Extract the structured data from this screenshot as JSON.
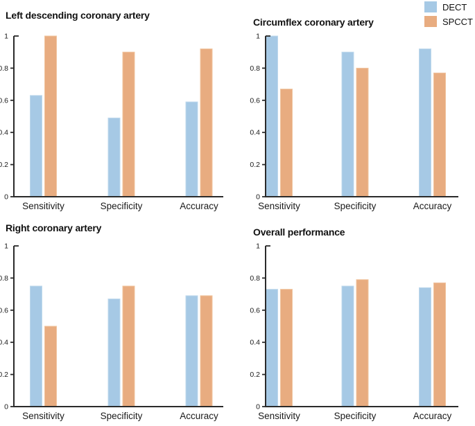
{
  "legend": {
    "position": "top-right",
    "items": [
      {
        "label": "DECT",
        "color": "#A6C9E5",
        "edge": "#BFD9EC"
      },
      {
        "label": "SPCCT",
        "color": "#E8AC80",
        "edge": "#F0C49E"
      }
    ]
  },
  "axis_style": {
    "spine_color": "#2a2a2a",
    "tick_label_color": "#1a1a1a",
    "category_label_color": "#1a1a1a"
  },
  "chart_data": [
    {
      "type": "bar",
      "title": "Left descending coronary artery",
      "categories": [
        "Sensitivity",
        "Specificity",
        "Accuracy"
      ],
      "series": [
        {
          "name": "DECT",
          "values": [
            0.63,
            0.49,
            0.59
          ]
        },
        {
          "name": "SPCCT",
          "values": [
            1.0,
            0.9,
            0.92
          ]
        }
      ],
      "ylim": [
        0,
        1
      ],
      "yticks": [
        0,
        0.2,
        0.4,
        0.6,
        0.8,
        1
      ],
      "ytick_labels": [
        "0",
        "0.2",
        "0.4",
        "0.6",
        "0.8",
        "1"
      ],
      "grid": false,
      "legend_position": "figure-top-right"
    },
    {
      "type": "bar",
      "title": "Circumflex coronary artery",
      "categories": [
        "Sensitivity",
        "Specificity",
        "Accuracy"
      ],
      "series": [
        {
          "name": "DECT",
          "values": [
            1.0,
            0.9,
            0.92
          ]
        },
        {
          "name": "SPCCT",
          "values": [
            0.67,
            0.8,
            0.77
          ]
        }
      ],
      "ylim": [
        0,
        1
      ],
      "yticks": [
        0,
        0.2,
        0.4,
        0.6,
        0.8,
        1
      ],
      "ytick_labels": [
        "0",
        "0.2",
        "0.4",
        "0.6",
        "0.8",
        "1"
      ],
      "grid": false,
      "legend_position": "figure-top-right"
    },
    {
      "type": "bar",
      "title": "Right coronary artery",
      "categories": [
        "Sensitivity",
        "Specificity",
        "Accuracy"
      ],
      "series": [
        {
          "name": "DECT",
          "values": [
            0.75,
            0.67,
            0.69
          ]
        },
        {
          "name": "SPCCT",
          "values": [
            0.5,
            0.75,
            0.69
          ]
        }
      ],
      "ylim": [
        0,
        1
      ],
      "yticks": [
        0,
        0.2,
        0.4,
        0.6,
        0.8,
        1
      ],
      "ytick_labels": [
        "0",
        "0.2",
        "0.4",
        "0.6",
        "0.8",
        "1"
      ],
      "grid": false,
      "legend_position": "figure-top-right"
    },
    {
      "type": "bar",
      "title": "Overall performance",
      "categories": [
        "Sensitivity",
        "Specificity",
        "Accuracy"
      ],
      "series": [
        {
          "name": "DECT",
          "values": [
            0.73,
            0.75,
            0.74
          ]
        },
        {
          "name": "SPCCT",
          "values": [
            0.73,
            0.79,
            0.77
          ]
        }
      ],
      "ylim": [
        0,
        1
      ],
      "yticks": [
        0,
        0.2,
        0.4,
        0.6,
        0.8,
        1
      ],
      "ytick_labels": [
        "0",
        "0.2",
        "0.4",
        "0.6",
        "0.8",
        "1"
      ],
      "grid": false,
      "legend_position": "figure-top-right"
    }
  ]
}
